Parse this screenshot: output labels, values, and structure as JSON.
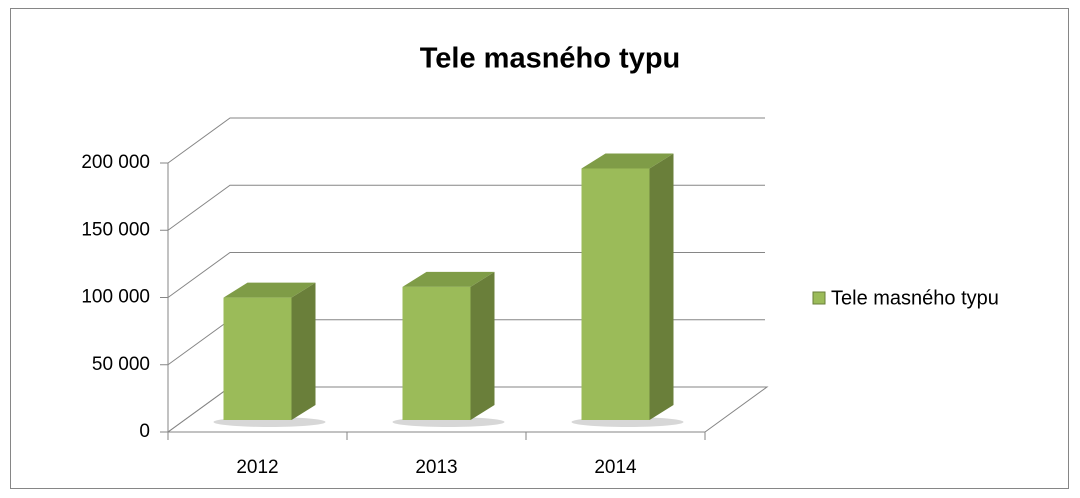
{
  "chart_data": {
    "type": "bar3d",
    "title": "Tele masného typu",
    "categories": [
      "2012",
      "2013",
      "2014"
    ],
    "series": [
      {
        "name": "Tele masného typu",
        "color": "#9bbb59",
        "values": [
          91000,
          99000,
          187000
        ]
      }
    ],
    "ylim": [
      0,
      200000
    ],
    "yticks": [
      0,
      {
        "value": 50000,
        "label": "50 000"
      },
      {
        "value": 100000,
        "label": "100 000"
      },
      {
        "value": 150000,
        "label": "150 000"
      },
      {
        "value": 200000,
        "label": "200 000"
      }
    ],
    "grid": true,
    "legend": "right"
  }
}
